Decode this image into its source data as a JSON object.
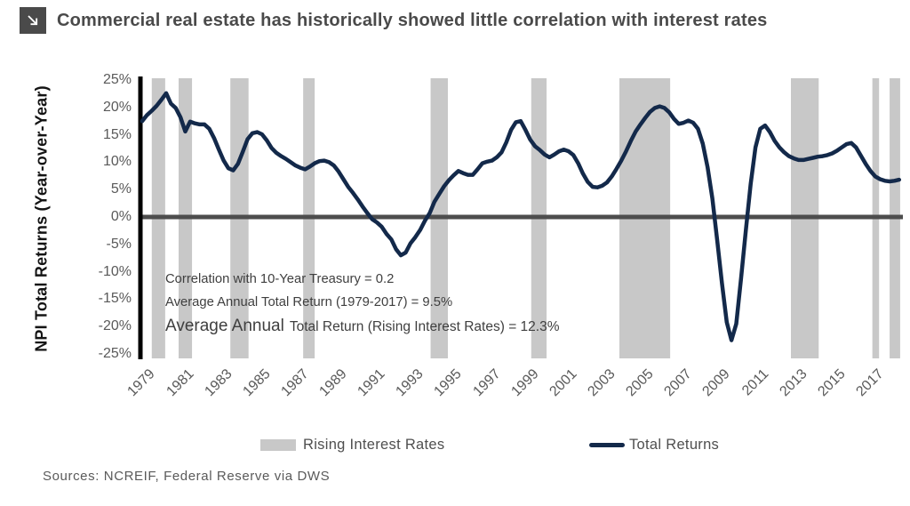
{
  "header": {
    "title": "Commercial real estate has historically showed little correlation with interest rates",
    "icon": "arrow-down-right-icon"
  },
  "chart_data": {
    "type": "line",
    "title": "Commercial real estate has historically showed little correlation with interest rates",
    "xlabel": "",
    "ylabel": "NPI Total Returns (Year-over-Year)",
    "ylim": [
      -25,
      25
    ],
    "xlim": [
      1979,
      2018.6
    ],
    "grid": false,
    "legend_position": "bottom-center",
    "y_ticks": [
      25,
      20,
      15,
      10,
      5,
      0,
      -5,
      -10,
      -15,
      -20,
      -25
    ],
    "y_tick_suffix": "%",
    "x_ticks": [
      1979,
      1981,
      1983,
      1985,
      1987,
      1989,
      1991,
      1993,
      1995,
      1997,
      1999,
      2001,
      2003,
      2005,
      2007,
      2009,
      2011,
      2013,
      2015,
      2017
    ],
    "series": [
      {
        "name": "Total Returns",
        "color": "#13294a",
        "x_start": 1979,
        "x_step": 0.25,
        "values": [
          17.5,
          18.6,
          19.4,
          20.3,
          21.4,
          22.6,
          20.7,
          19.9,
          18.2,
          15.6,
          17.4,
          17.1,
          16.9,
          16.9,
          16.1,
          14.4,
          12.3,
          10.3,
          8.9,
          8.5,
          9.7,
          11.9,
          14.2,
          15.3,
          15.5,
          15.1,
          14.0,
          12.6,
          11.7,
          11.1,
          10.6,
          10.0,
          9.4,
          9.0,
          8.7,
          9.2,
          9.8,
          10.2,
          10.3,
          10.0,
          9.4,
          8.3,
          6.9,
          5.5,
          4.4,
          3.2,
          1.9,
          0.7,
          -0.4,
          -1.0,
          -1.8,
          -3.1,
          -4.1,
          -5.9,
          -7.0,
          -6.5,
          -4.8,
          -3.7,
          -2.4,
          -0.7,
          0.7,
          2.8,
          4.2,
          5.6,
          6.7,
          7.6,
          8.4,
          8.0,
          7.7,
          7.7,
          8.7,
          9.8,
          10.1,
          10.3,
          10.9,
          11.8,
          13.6,
          15.9,
          17.3,
          17.5,
          15.9,
          14.1,
          12.9,
          12.2,
          11.4,
          10.9,
          11.4,
          12.0,
          12.3,
          12.0,
          11.3,
          9.8,
          7.9,
          6.4,
          5.5,
          5.4,
          5.7,
          6.3,
          7.4,
          8.8,
          10.3,
          12.0,
          13.9,
          15.6,
          16.9,
          18.1,
          19.2,
          19.9,
          20.2,
          19.9,
          19.1,
          17.9,
          17.0,
          17.2,
          17.6,
          17.2,
          16.1,
          13.4,
          9.1,
          3.4,
          -4.2,
          -12.1,
          -19.2,
          -22.5,
          -19.5,
          -11.2,
          -2.4,
          6.0,
          12.7,
          16.1,
          16.7,
          15.5,
          13.9,
          12.7,
          11.8,
          11.1,
          10.7,
          10.4,
          10.4,
          10.6,
          10.8,
          11.0,
          11.1,
          11.3,
          11.6,
          12.1,
          12.7,
          13.3,
          13.5,
          12.7,
          11.2,
          9.7,
          8.4,
          7.4,
          6.9,
          6.6,
          6.5,
          6.6,
          6.8
        ]
      }
    ],
    "bands": {
      "name": "Rising Interest Rates",
      "color": "#c8c8c8",
      "ranges": [
        [
          1979.5,
          1980.2
        ],
        [
          1980.9,
          1981.6
        ],
        [
          1983.6,
          1984.55
        ],
        [
          1987.4,
          1988.0
        ],
        [
          1994.05,
          1994.95
        ],
        [
          1999.3,
          2000.1
        ],
        [
          2003.9,
          2006.55
        ],
        [
          2012.85,
          2014.3
        ],
        [
          2017.1,
          2017.45
        ],
        [
          2018.0,
          2018.55
        ]
      ]
    },
    "zero_line_color": "#4d4d4d",
    "axis_line_color": "#000000",
    "annotations": {
      "correlation": "Correlation with 10-Year Treasury = 0.2",
      "avg_total": "Average Annual Total Return (1979-2017) = 9.5%",
      "avg_rising_prefix": "Average Annual",
      "avg_rising_rest": "Total Return (Rising Interest Rates) =  12.3%"
    },
    "legend": [
      {
        "label": "Rising Interest Rates",
        "swatch": "band"
      },
      {
        "label": "Total Returns",
        "swatch": "line"
      }
    ]
  },
  "footer": {
    "sources": "Sources: NCREIF, Federal Reserve via DWS"
  },
  "colors": {
    "line": "#13294a",
    "band": "#c8c8c8",
    "zero_line": "#4d4d4d",
    "title_text": "#4a4a4a",
    "tick_text": "#5a5a5a"
  }
}
